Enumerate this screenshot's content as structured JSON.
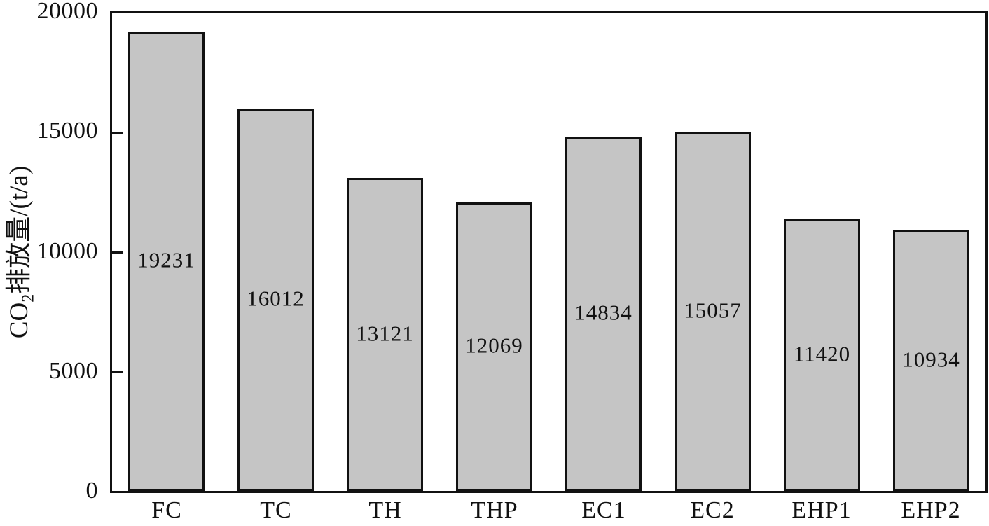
{
  "chart_data": {
    "type": "bar",
    "title": "",
    "categories": [
      "FC",
      "TC",
      "TH",
      "THP",
      "EC1",
      "EC2",
      "EHP1",
      "EHP2"
    ],
    "values": [
      19231,
      16012,
      13121,
      12069,
      14834,
      15057,
      11420,
      10934
    ],
    "value_labels": [
      "19231",
      "16012",
      "13121",
      "12069",
      "14834",
      "15057",
      "11420",
      "10934"
    ],
    "value_label_position": "middle-of-bar",
    "xlabel": "",
    "ylabel": "CO2排放量/(t/a)",
    "ylabel_parts": {
      "prefix": "CO",
      "subscript": "2",
      "suffix": "排放量/(t/a)"
    },
    "ylim": [
      0,
      20000
    ],
    "yticks": [
      20000,
      15000,
      10000,
      5000,
      0
    ],
    "ytick_labels": [
      "20000",
      "15000",
      "10000",
      "5000",
      "0"
    ],
    "grid": false,
    "legend": null,
    "frame": "full-box",
    "tick_direction": "in",
    "bar_fill_color": "#c5c5c5",
    "bar_border_color": "#111111",
    "axis_color": "#111111",
    "background_color": "#ffffff"
  }
}
